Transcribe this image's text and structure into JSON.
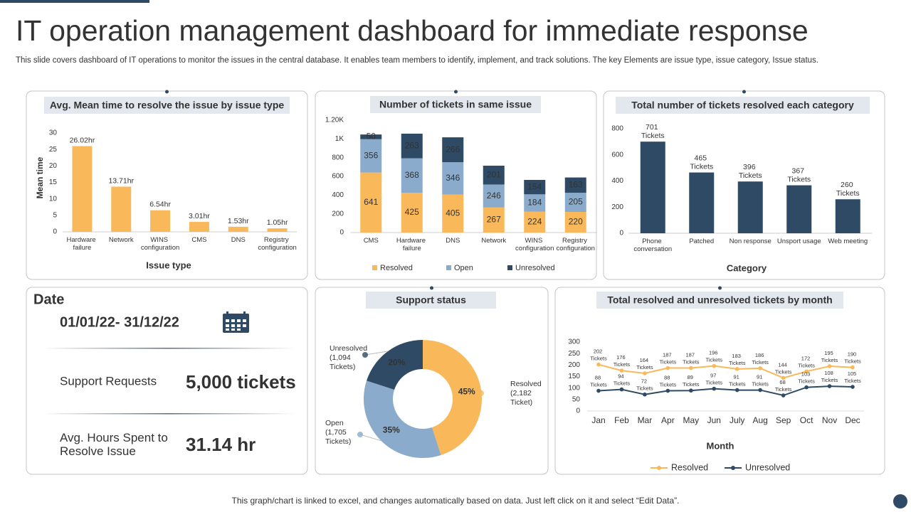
{
  "header": {
    "title": "IT operation management dashboard for immediate response",
    "subtitle": "This slide covers dashboard of IT operations to monitor the issues in the central database. It enables team members to identify, implement, and track solutions. The key Elements are issue type, issue category, Issue status."
  },
  "date_panel": {
    "heading": "Date",
    "range": "01/01/22- 31/12/22",
    "metrics": [
      {
        "label": "Support Requests",
        "value": "5,000 tickets"
      },
      {
        "label": "Avg. Hours Spent to Resolve Issue",
        "value": "31.14 hr"
      }
    ]
  },
  "chart_data": [
    {
      "type": "bar",
      "title": "Avg. Mean time to resolve the issue by issue type",
      "ylabel": "Mean time",
      "xlabel": "Issue type",
      "categories": [
        "Hardware failure",
        "Network",
        "WINS configuration",
        "CMS",
        "DNS",
        "Registry configuration"
      ],
      "values": [
        26.02,
        13.71,
        6.54,
        3.01,
        1.53,
        1.05
      ],
      "value_labels": [
        "26.02hr",
        "13.71hr",
        "6.54hr",
        "3.01hr",
        "1.53hr",
        "1.05hr"
      ],
      "color": "#f9b95a",
      "ylim": [
        0,
        30
      ],
      "yticks": [
        0,
        5,
        10,
        15,
        20,
        25,
        30
      ],
      "grid": false
    },
    {
      "type": "bar",
      "stacked": true,
      "title": "Number of tickets in same issue",
      "categories": [
        "CMS",
        "Hardware failure",
        "DNS",
        "Network",
        "WINS configuration",
        "Registry configuration"
      ],
      "series": [
        {
          "name": "Resolved",
          "color": "#f9b95a",
          "values": [
            641,
            425,
            405,
            267,
            224,
            220
          ]
        },
        {
          "name": "Open",
          "color": "#8aabcb",
          "values": [
            356,
            368,
            346,
            246,
            184,
            205
          ]
        },
        {
          "name": "Unresolved",
          "color": "#2e4a64",
          "values": [
            50,
            263,
            266,
            201,
            154,
            163
          ]
        }
      ],
      "ylim": [
        0,
        1200
      ],
      "yticks": [
        0,
        200,
        400,
        600,
        800,
        {
          "value": 1000,
          "label": "1K"
        },
        {
          "value": 1200,
          "label": "1.20K"
        }
      ],
      "grid": false,
      "legend": "bottom"
    },
    {
      "type": "bar",
      "title": "Total number of tickets resolved each category",
      "xlabel": "Category",
      "categories": [
        "Phone conversation",
        "Patched",
        "Non response",
        "Unsport usage",
        "Web meeting"
      ],
      "values": [
        701,
        465,
        396,
        367,
        260
      ],
      "value_labels": [
        "701 Tickets",
        "465 Tickets",
        "396 Tickets",
        "367 Tickets",
        "260 Tickets"
      ],
      "color": "#2e4a64",
      "ylim": [
        0,
        800
      ],
      "yticks": [
        0,
        200,
        400,
        600,
        800
      ],
      "grid": false
    },
    {
      "type": "pie",
      "donut": true,
      "title": "Support status",
      "categories": [
        "Resolved",
        "Open",
        "Unresolved"
      ],
      "values": [
        45,
        35,
        20
      ],
      "value_labels": [
        "45%",
        "35%",
        "20%"
      ],
      "annotations": [
        "(2,182 Ticket)",
        "(1,705 Tickets)",
        "(1,094 Tickets)"
      ],
      "colors": [
        "#f9b95a",
        "#8aabcb",
        "#2e4a64"
      ]
    },
    {
      "type": "line",
      "title": "Total resolved and unresolved tickets by month",
      "xlabel": "Month",
      "categories": [
        "Jan",
        "Feb",
        "Mar",
        "Apr",
        "May",
        "Jun",
        "July",
        "Aug",
        "Sep",
        "Oct",
        "Nov",
        "Dec"
      ],
      "series": [
        {
          "name": "Resolved",
          "color": "#f9b95a",
          "values": [
            202,
            176,
            164,
            187,
            187,
            196,
            183,
            186,
            144,
            172,
            195,
            190
          ],
          "value_labels": [
            "202 Tickets",
            "176 Tickets",
            "164 Tickets",
            "187 Tickets",
            "187 Tickets",
            "196 Tickets",
            "183 Tickets",
            "186 Tickets",
            "144 Tickets",
            "172 Tickets",
            "195 Tickets",
            "190 Tickets"
          ]
        },
        {
          "name": "Unresolved",
          "color": "#2e4a64",
          "values": [
            88,
            94,
            72,
            88,
            89,
            97,
            91,
            91,
            68,
            103,
            108,
            105
          ],
          "value_labels": [
            "88 Tickets",
            "94 Tickets",
            "72 Tickets",
            "88 Tickets",
            "89 Tickets",
            "97 Tickets",
            "91 Tickets",
            "91 Tickets",
            "68 Tickets",
            "103 Tickets",
            "108 Tickets",
            "105 Tickets"
          ]
        }
      ],
      "ylim": [
        0,
        300
      ],
      "yticks": [
        0,
        50,
        100,
        150,
        200,
        250,
        300
      ],
      "grid": false,
      "legend": "bottom"
    }
  ],
  "footer": "This graph/chart is linked to excel, and changes automatically based on data. Just left click on it and select “Edit Data”."
}
